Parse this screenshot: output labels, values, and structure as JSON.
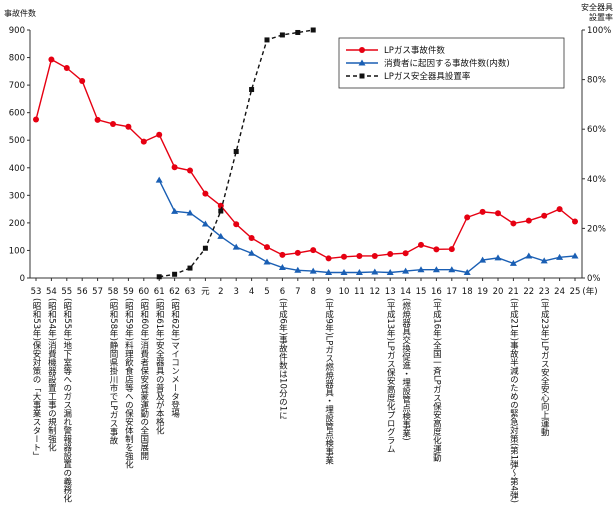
{
  "chart_data": {
    "type": "line",
    "y_left_title": "事故件数",
    "y_right_title": [
      "安全器具",
      "設置率"
    ],
    "x_unit": "(年)",
    "left_axis": {
      "min": 0,
      "max": 900,
      "ticks": [
        "0",
        "100",
        "200",
        "300",
        "400",
        "500",
        "600",
        "700",
        "800",
        "900"
      ]
    },
    "right_axis": {
      "min": 0,
      "max": 100,
      "ticks": [
        "0%",
        "20%",
        "40%",
        "60%",
        "80%",
        "100%"
      ]
    },
    "grid": false,
    "legend_position": "top-right",
    "categories": [
      "53",
      "54",
      "55",
      "56",
      "57",
      "58",
      "59",
      "60",
      "61",
      "62",
      "63",
      "元",
      "2",
      "3",
      "4",
      "5",
      "6",
      "7",
      "8",
      "9",
      "10",
      "11",
      "12",
      "13",
      "14",
      "15",
      "16",
      "17",
      "18",
      "19",
      "20",
      "21",
      "22",
      "23",
      "24",
      "25"
    ],
    "series": [
      {
        "name": "LPガス事故件数",
        "color": "#e60012",
        "marker": "circle",
        "axis": "left",
        "dash": "none",
        "values": [
          575,
          793,
          762,
          715,
          574,
          559,
          549,
          495,
          520,
          402,
          390,
          306,
          262,
          195,
          145,
          112,
          84,
          91,
          101,
          71,
          77,
          80,
          80,
          87,
          90,
          120,
          104,
          105,
          220,
          240,
          235,
          198,
          208,
          226,
          250,
          205
        ]
      },
      {
        "name": "消費者に起因する事故件数(内数)",
        "color": "#1a5fb4",
        "marker": "triangle",
        "axis": "left",
        "dash": "none",
        "values": [
          null,
          null,
          null,
          null,
          null,
          null,
          null,
          null,
          355,
          242,
          236,
          196,
          151,
          112,
          90,
          58,
          38,
          28,
          25,
          20,
          20,
          20,
          22,
          20,
          25,
          30,
          30,
          30,
          20,
          65,
          73,
          53,
          80,
          62,
          75,
          80
        ]
      },
      {
        "name": "LPガス安全器具設置率",
        "color": "#111111",
        "marker": "square",
        "axis": "right",
        "dash": "4,3",
        "values": [
          null,
          null,
          null,
          null,
          null,
          null,
          null,
          null,
          0.5,
          1.5,
          4,
          12,
          27,
          51,
          76,
          96,
          98,
          99,
          100,
          null,
          null,
          null,
          null,
          null,
          null,
          null,
          null,
          null,
          null,
          null,
          null,
          null,
          null,
          null,
          null,
          null
        ]
      }
    ],
    "annotations": [
      {
        "at": "53",
        "label": "(昭和53年)保安対策の「大事業スタート」"
      },
      {
        "at": "54",
        "label": "(昭和54年)消費機器設置工事の規制強化"
      },
      {
        "at": "55",
        "label": "(昭和55年)地下室等へのガス漏れ警報器設置の義務化"
      },
      {
        "at": "58",
        "label": "(昭和58年)静岡県掛川市でLPガス事故"
      },
      {
        "at": "59",
        "label": "(昭和59年)料理飲食店等への保安体制を強化"
      },
      {
        "at": "60",
        "label": "(昭和60年)消費者保安啓蒙運動の全国展開"
      },
      {
        "at": "61",
        "label": "(昭和61年)安全器具の普及が本格化"
      },
      {
        "at": "62",
        "label": "(昭和62年)マイコンメータ登場"
      },
      {
        "at": "6",
        "label": "(平成6年)事故件数は10分の1に"
      },
      {
        "at": "9",
        "label": "(平成9年)LPガス燃焼器具・埋設管点検事業"
      },
      {
        "at": "13",
        "label": "(平成13年)LPガス保安高度化プログラム"
      },
      {
        "at": "14",
        "label": "(燃焼器具交換促進・埋設管点検事業)"
      },
      {
        "at": "16",
        "label": "(平成16年)全国一斉LPガス保安高度化運動"
      },
      {
        "at": "21",
        "label": "(平成21年)事故半減のための緊急対策(第1弾～第4弾)"
      },
      {
        "at": "23",
        "label": "(平成23年)LPガス安全安心向上運動"
      }
    ]
  }
}
